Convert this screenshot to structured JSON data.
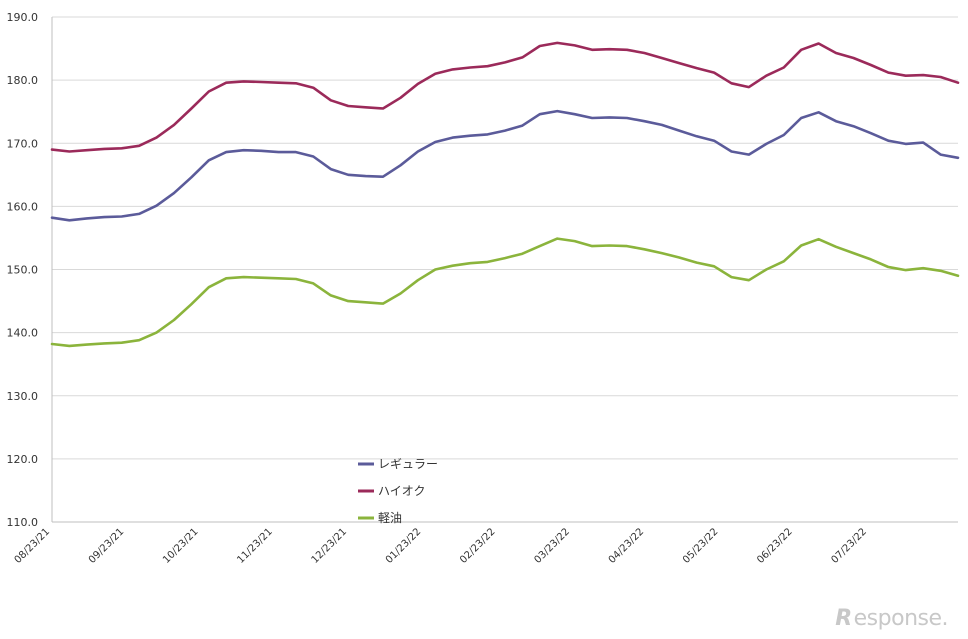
{
  "chart_data": {
    "type": "line",
    "title": "",
    "xlabel": "",
    "ylabel": "",
    "ylim": [
      110,
      190
    ],
    "y_ticks": [
      "110.0",
      "120.0",
      "130.0",
      "140.0",
      "150.0",
      "160.0",
      "170.0",
      "180.0",
      "190.0"
    ],
    "x_tick_labels": [
      "08/23/21",
      "09/23/21",
      "10/23/21",
      "11/23/21",
      "12/23/21",
      "01/23/22",
      "02/23/22",
      "03/23/22",
      "04/23/22",
      "05/23/22",
      "06/23/22",
      "07/23/22"
    ],
    "grid": "horizontal",
    "legend_position": "bottom-center",
    "series": [
      {
        "name": "レギュラー",
        "color": "#5b5b9a",
        "values": [
          158.2,
          157.8,
          158.1,
          158.3,
          158.4,
          158.8,
          160.1,
          162.1,
          164.6,
          167.3,
          168.6,
          168.9,
          168.8,
          168.6,
          168.6,
          167.9,
          165.9,
          165.0,
          164.8,
          164.7,
          166.5,
          168.7,
          170.2,
          170.9,
          171.2,
          171.4,
          172.0,
          172.8,
          174.6,
          175.1,
          174.6,
          174.0,
          174.1,
          174.0,
          173.5,
          172.9,
          172.0,
          171.1,
          170.4,
          168.7,
          168.2,
          169.9,
          171.3,
          174.0,
          174.9,
          173.5,
          172.7,
          171.6,
          170.4,
          169.9,
          170.1,
          168.2,
          167.7
        ]
      },
      {
        "name": "ハイオク",
        "color": "#9b2a5a",
        "values": [
          169.0,
          168.7,
          168.9,
          169.1,
          169.2,
          169.6,
          170.9,
          172.9,
          175.5,
          178.2,
          179.6,
          179.8,
          179.7,
          179.6,
          179.5,
          178.8,
          176.8,
          175.9,
          175.7,
          175.5,
          177.2,
          179.4,
          181.0,
          181.7,
          182.0,
          182.2,
          182.8,
          183.6,
          185.4,
          185.9,
          185.5,
          184.8,
          184.9,
          184.8,
          184.3,
          183.5,
          182.7,
          181.9,
          181.2,
          179.5,
          178.9,
          180.7,
          182.0,
          184.8,
          185.8,
          184.3,
          183.5,
          182.4,
          181.2,
          180.7,
          180.8,
          180.5,
          179.6
        ]
      },
      {
        "name": "軽油",
        "color": "#8bb43c",
        "values": [
          138.2,
          137.9,
          138.1,
          138.3,
          138.4,
          138.8,
          140.0,
          142.0,
          144.5,
          147.2,
          148.6,
          148.8,
          148.7,
          148.6,
          148.5,
          147.8,
          145.9,
          145.0,
          144.8,
          144.6,
          146.2,
          148.3,
          150.0,
          150.6,
          151.0,
          151.2,
          151.8,
          152.5,
          153.7,
          154.9,
          154.5,
          153.7,
          153.8,
          153.7,
          153.2,
          152.6,
          151.9,
          151.1,
          150.5,
          148.8,
          148.3,
          150.0,
          151.3,
          153.8,
          154.8,
          153.6,
          152.6,
          151.6,
          150.4,
          149.9,
          150.2,
          149.8,
          149.0
        ]
      }
    ]
  },
  "watermark": {
    "glyph": "R",
    "text": "esponse."
  }
}
